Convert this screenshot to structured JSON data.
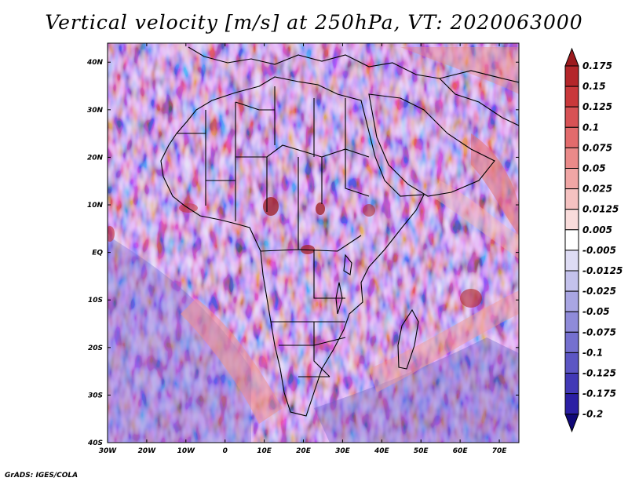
{
  "title": "Vertical velocity [m/s] at 250hPa, VT: 2020063000",
  "footer": "GrADS: IGES/COLA",
  "map": {
    "lat_labels": [
      "40N",
      "30N",
      "20N",
      "10N",
      "EQ",
      "10S",
      "20S",
      "30S",
      "40S"
    ],
    "lon_labels": [
      "30W",
      "20W",
      "10W",
      "0",
      "10E",
      "20E",
      "30E",
      "40E",
      "50E",
      "60E",
      "70E"
    ],
    "lat_range": [
      -40,
      44
    ],
    "lon_range": [
      -30,
      75
    ]
  },
  "colorbar": {
    "labels": [
      "0.175",
      "0.15",
      "0.125",
      "0.1",
      "0.075",
      "0.05",
      "0.025",
      "0.0125",
      "0.005",
      "-0.005",
      "-0.0125",
      "-0.025",
      "-0.05",
      "-0.075",
      "-0.1",
      "-0.125",
      "-0.175",
      "-0.2"
    ],
    "colors": [
      "#b4262a",
      "#c9383b",
      "#d75255",
      "#e26b6c",
      "#ea8a89",
      "#f0a6a5",
      "#f5c2c1",
      "#f9dcdb",
      "#ffffff",
      "#dedcf4",
      "#c4c2ec",
      "#a9a6e3",
      "#8f8bd9",
      "#7570cf",
      "#5c56c4",
      "#4239b6",
      "#2b1fa4",
      "#1a0e8c"
    ],
    "top_color": "#9c1a1e",
    "bottom_color": "#100878"
  }
}
